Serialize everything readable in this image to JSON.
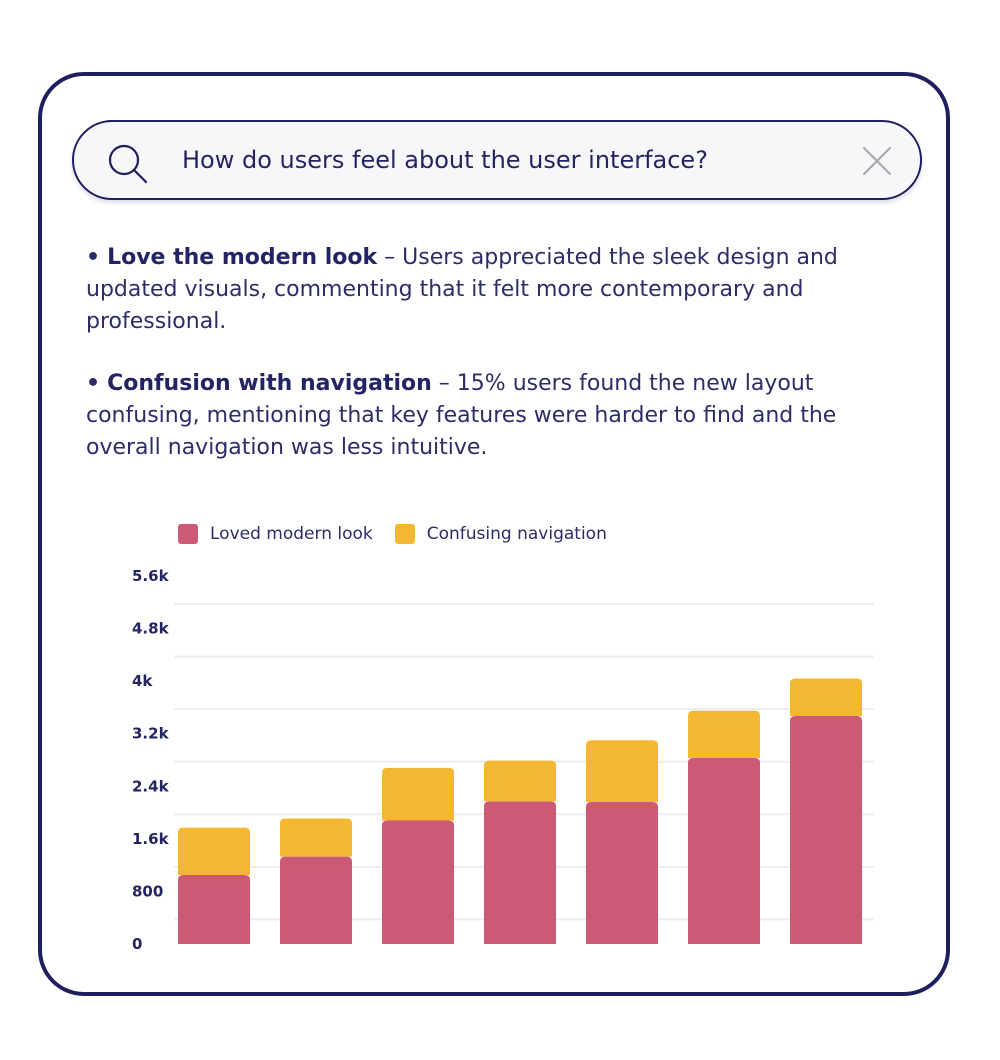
{
  "search": {
    "query": "How do users feel about the user interface?"
  },
  "bullets": [
    {
      "dot": "•",
      "title": "Love the modern look",
      "text": " – Users appreciated the sleek design and updated visuals, commenting that it felt more contemporary and professional."
    },
    {
      "dot": "•",
      "title": "Confusion with navigation",
      "text": " – 15% users found the new layout confusing, mentioning that key features were harder to find and the overall navigation was less intuitive."
    }
  ],
  "colors": {
    "loved": "#cc5a76",
    "confusing": "#f4b731",
    "grid": "#ededf2"
  },
  "chart_data": {
    "type": "bar",
    "stacked": true,
    "categories": [
      "",
      "",
      "",
      "",
      "",
      "",
      ""
    ],
    "series": [
      {
        "name": "Loved modern look",
        "color": "#cc5a76",
        "values": [
          1050,
          1330,
          1880,
          2170,
          2160,
          2830,
          3470
        ]
      },
      {
        "name": "Confusing navigation",
        "color": "#f4b731",
        "values": [
          720,
          580,
          800,
          620,
          940,
          720,
          570
        ]
      }
    ],
    "yticks": [
      "0",
      "800",
      "1.6k",
      "2.4k",
      "3.2k",
      "4k",
      "4.8k",
      "5.6k"
    ],
    "ytick_values": [
      0,
      800,
      1600,
      2400,
      3200,
      4000,
      4800,
      5600
    ],
    "ylim": [
      0,
      5600
    ],
    "grid": true,
    "legend_position": "top-left"
  }
}
